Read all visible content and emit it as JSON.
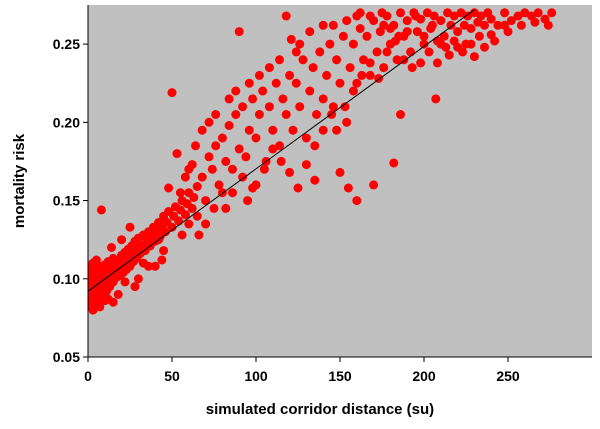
{
  "chart_data": {
    "type": "scatter",
    "title": "",
    "xlabel": "simulated corridor distance (su)",
    "ylabel": "mortality risk",
    "xlim": [
      0,
      300
    ],
    "ylim": [
      0.05,
      0.275
    ],
    "x_ticks": [
      0,
      50,
      100,
      150,
      200,
      250
    ],
    "x_tick_labels": [
      "0",
      "50",
      "100",
      "150",
      "200",
      "250"
    ],
    "y_ticks": [
      0.05,
      0.1,
      0.15,
      0.2,
      0.25
    ],
    "y_tick_labels": [
      "0.05",
      "0.10",
      "0.15",
      "0.20",
      "0.25"
    ],
    "grid": false,
    "legend": "none",
    "colors": {
      "plot_background": "#c0c0c0",
      "points": "#ff0000",
      "trendline": "#000000"
    },
    "trendline": {
      "x": [
        0,
        230
      ],
      "y": [
        0.092,
        0.272
      ]
    },
    "series": [
      {
        "points": [
          [
            1,
            0.083
          ],
          [
            1,
            0.09
          ],
          [
            1,
            0.097
          ],
          [
            1,
            0.104
          ],
          [
            2,
            0.086
          ],
          [
            2,
            0.093
          ],
          [
            2,
            0.1
          ],
          [
            2,
            0.108
          ],
          [
            3,
            0.088
          ],
          [
            3,
            0.095
          ],
          [
            3,
            0.102
          ],
          [
            3,
            0.11
          ],
          [
            4,
            0.091
          ],
          [
            4,
            0.098
          ],
          [
            4,
            0.105
          ],
          [
            5,
            0.089
          ],
          [
            5,
            0.096
          ],
          [
            5,
            0.103
          ],
          [
            5,
            0.112
          ],
          [
            6,
            0.092
          ],
          [
            6,
            0.099
          ],
          [
            6,
            0.106
          ],
          [
            7,
            0.087
          ],
          [
            7,
            0.095
          ],
          [
            7,
            0.101
          ],
          [
            7,
            0.108
          ],
          [
            8,
            0.093
          ],
          [
            8,
            0.1
          ],
          [
            8,
            0.104
          ],
          [
            9,
            0.09
          ],
          [
            9,
            0.098
          ],
          [
            9,
            0.106
          ],
          [
            10,
            0.095
          ],
          [
            10,
            0.102
          ],
          [
            10,
            0.109
          ],
          [
            11,
            0.092
          ],
          [
            11,
            0.1
          ],
          [
            12,
            0.097
          ],
          [
            12,
            0.104
          ],
          [
            12,
            0.111
          ],
          [
            13,
            0.095
          ],
          [
            13,
            0.103
          ],
          [
            14,
            0.1
          ],
          [
            14,
            0.108
          ],
          [
            15,
            0.098
          ],
          [
            15,
            0.106
          ],
          [
            15,
            0.113
          ],
          [
            16,
            0.103
          ],
          [
            16,
            0.11
          ],
          [
            17,
            0.101
          ],
          [
            17,
            0.108
          ],
          [
            18,
            0.105
          ],
          [
            18,
            0.112
          ],
          [
            19,
            0.102
          ],
          [
            19,
            0.11
          ],
          [
            20,
            0.107
          ],
          [
            20,
            0.115
          ],
          [
            21,
            0.104
          ],
          [
            22,
            0.11
          ],
          [
            22,
            0.117
          ],
          [
            23,
            0.106
          ],
          [
            24,
            0.112
          ],
          [
            24,
            0.119
          ],
          [
            25,
            0.108
          ],
          [
            26,
            0.115
          ],
          [
            26,
            0.121
          ],
          [
            27,
            0.111
          ],
          [
            28,
            0.117
          ],
          [
            28,
            0.124
          ],
          [
            29,
            0.113
          ],
          [
            30,
            0.119
          ],
          [
            30,
            0.126
          ],
          [
            31,
            0.116
          ],
          [
            32,
            0.121
          ],
          [
            33,
            0.128
          ],
          [
            34,
            0.118
          ],
          [
            35,
            0.124
          ],
          [
            36,
            0.13
          ],
          [
            37,
            0.121
          ],
          [
            38,
            0.127
          ],
          [
            39,
            0.133
          ],
          [
            40,
            0.124
          ],
          [
            41,
            0.13
          ],
          [
            42,
            0.136
          ],
          [
            43,
            0.127
          ],
          [
            44,
            0.133
          ],
          [
            45,
            0.14
          ],
          [
            46,
            0.13
          ],
          [
            47,
            0.136
          ],
          [
            48,
            0.143
          ],
          [
            50,
            0.133
          ],
          [
            51,
            0.14
          ],
          [
            52,
            0.146
          ],
          [
            54,
            0.137
          ],
          [
            55,
            0.144
          ],
          [
            56,
            0.15
          ],
          [
            58,
            0.141
          ],
          [
            59,
            0.148
          ],
          [
            60,
            0.155
          ],
          [
            62,
            0.145
          ],
          [
            63,
            0.152
          ],
          [
            65,
            0.159
          ],
          [
            8,
            0.144
          ],
          [
            7,
            0.082
          ],
          [
            12,
            0.087
          ],
          [
            20,
            0.125
          ],
          [
            25,
            0.133
          ],
          [
            33,
            0.11
          ],
          [
            40,
            0.108
          ],
          [
            45,
            0.118
          ],
          [
            48,
            0.158
          ],
          [
            50,
            0.219
          ],
          [
            53,
            0.18
          ],
          [
            58,
            0.165
          ],
          [
            62,
            0.173
          ],
          [
            66,
            0.128
          ],
          [
            68,
            0.165
          ],
          [
            70,
            0.15
          ],
          [
            72,
            0.178
          ],
          [
            74,
            0.17
          ],
          [
            76,
            0.185
          ],
          [
            78,
            0.16
          ],
          [
            80,
            0.19
          ],
          [
            82,
            0.175
          ],
          [
            84,
            0.198
          ],
          [
            86,
            0.17
          ],
          [
            88,
            0.205
          ],
          [
            90,
            0.183
          ],
          [
            92,
            0.21
          ],
          [
            94,
            0.178
          ],
          [
            96,
            0.195
          ],
          [
            98,
            0.215
          ],
          [
            100,
            0.19
          ],
          [
            102,
            0.205
          ],
          [
            104,
            0.22
          ],
          [
            106,
            0.175
          ],
          [
            108,
            0.21
          ],
          [
            110,
            0.195
          ],
          [
            112,
            0.225
          ],
          [
            114,
            0.185
          ],
          [
            116,
            0.215
          ],
          [
            118,
            0.205
          ],
          [
            120,
            0.23
          ],
          [
            122,
            0.195
          ],
          [
            124,
            0.225
          ],
          [
            126,
            0.21
          ],
          [
            128,
            0.24
          ],
          [
            130,
            0.19
          ],
          [
            132,
            0.22
          ],
          [
            134,
            0.235
          ],
          [
            136,
            0.205
          ],
          [
            138,
            0.245
          ],
          [
            140,
            0.215
          ],
          [
            142,
            0.23
          ],
          [
            144,
            0.25
          ],
          [
            146,
            0.21
          ],
          [
            148,
            0.24
          ],
          [
            150,
            0.225
          ],
          [
            152,
            0.255
          ],
          [
            154,
            0.2
          ],
          [
            156,
            0.235
          ],
          [
            158,
            0.25
          ],
          [
            160,
            0.225
          ],
          [
            162,
            0.26
          ],
          [
            164,
            0.24
          ],
          [
            166,
            0.255
          ],
          [
            168,
            0.23
          ],
          [
            170,
            0.265
          ],
          [
            172,
            0.245
          ],
          [
            174,
            0.258
          ],
          [
            176,
            0.235
          ],
          [
            178,
            0.268
          ],
          [
            180,
            0.25
          ],
          [
            182,
            0.262
          ],
          [
            184,
            0.24
          ],
          [
            186,
            0.27
          ],
          [
            188,
            0.255
          ],
          [
            190,
            0.265
          ],
          [
            192,
            0.245
          ],
          [
            194,
            0.27
          ],
          [
            196,
            0.258
          ],
          [
            198,
            0.266
          ],
          [
            200,
            0.25
          ],
          [
            202,
            0.27
          ],
          [
            204,
            0.26
          ],
          [
            206,
            0.268
          ],
          [
            208,
            0.252
          ],
          [
            210,
            0.265
          ],
          [
            212,
            0.255
          ],
          [
            214,
            0.27
          ],
          [
            216,
            0.262
          ],
          [
            218,
            0.268
          ],
          [
            220,
            0.258
          ],
          [
            222,
            0.27
          ],
          [
            224,
            0.262
          ],
          [
            226,
            0.268
          ],
          [
            228,
            0.26
          ],
          [
            230,
            0.27
          ],
          [
            232,
            0.264
          ],
          [
            234,
            0.268
          ],
          [
            236,
            0.262
          ],
          [
            238,
            0.27
          ],
          [
            240,
            0.266
          ],
          [
            244,
            0.262
          ],
          [
            248,
            0.27
          ],
          [
            252,
            0.265
          ],
          [
            256,
            0.268
          ],
          [
            260,
            0.27
          ],
          [
            264,
            0.268
          ],
          [
            268,
            0.27
          ],
          [
            272,
            0.266
          ],
          [
            276,
            0.27
          ],
          [
            118,
            0.268
          ],
          [
            121,
            0.253
          ],
          [
            124,
            0.245
          ],
          [
            90,
            0.258
          ],
          [
            135,
            0.163
          ],
          [
            150,
            0.168
          ],
          [
            155,
            0.158
          ],
          [
            160,
            0.15
          ],
          [
            170,
            0.16
          ],
          [
            182,
            0.174
          ],
          [
            186,
            0.205
          ],
          [
            207,
            0.215
          ],
          [
            160,
            0.268
          ],
          [
            175,
            0.27
          ],
          [
            185,
            0.255
          ],
          [
            195,
            0.268
          ],
          [
            205,
            0.262
          ],
          [
            215,
            0.243
          ],
          [
            225,
            0.25
          ],
          [
            240,
            0.256
          ],
          [
            248,
            0.262
          ],
          [
            100,
            0.16
          ],
          [
            105,
            0.17
          ],
          [
            110,
            0.183
          ],
          [
            115,
            0.175
          ],
          [
            120,
            0.168
          ],
          [
            125,
            0.158
          ],
          [
            130,
            0.173
          ],
          [
            135,
            0.185
          ],
          [
            140,
            0.195
          ],
          [
            145,
            0.205
          ],
          [
            148,
            0.195
          ],
          [
            153,
            0.21
          ],
          [
            158,
            0.22
          ],
          [
            163,
            0.23
          ],
          [
            168,
            0.238
          ],
          [
            173,
            0.228
          ],
          [
            178,
            0.245
          ],
          [
            183,
            0.252
          ],
          [
            188,
            0.24
          ],
          [
            193,
            0.235
          ],
          [
            198,
            0.238
          ],
          [
            203,
            0.245
          ],
          [
            208,
            0.238
          ],
          [
            213,
            0.248
          ],
          [
            218,
            0.252
          ],
          [
            223,
            0.245
          ],
          [
            228,
            0.25
          ],
          [
            233,
            0.255
          ],
          [
            82,
            0.145
          ],
          [
            86,
            0.155
          ],
          [
            92,
            0.165
          ],
          [
            95,
            0.15
          ],
          [
            98,
            0.158
          ],
          [
            65,
            0.14
          ],
          [
            70,
            0.135
          ],
          [
            75,
            0.145
          ],
          [
            80,
            0.155
          ],
          [
            56,
            0.128
          ],
          [
            60,
            0.135
          ],
          [
            44,
            0.112
          ],
          [
            36,
            0.108
          ],
          [
            30,
            0.1
          ],
          [
            28,
            0.095
          ],
          [
            18,
            0.09
          ],
          [
            15,
            0.085
          ],
          [
            3,
            0.08
          ],
          [
            6,
            0.083
          ],
          [
            10,
            0.086
          ],
          [
            14,
            0.12
          ],
          [
            22,
            0.098
          ],
          [
            35,
            0.12
          ],
          [
            42,
            0.125
          ],
          [
            55,
            0.155
          ],
          [
            60,
            0.17
          ],
          [
            64,
            0.185
          ],
          [
            68,
            0.195
          ],
          [
            72,
            0.2
          ],
          [
            76,
            0.205
          ],
          [
            84,
            0.215
          ],
          [
            88,
            0.22
          ],
          [
            96,
            0.225
          ],
          [
            102,
            0.23
          ],
          [
            108,
            0.235
          ],
          [
            114,
            0.24
          ],
          [
            126,
            0.25
          ],
          [
            132,
            0.258
          ],
          [
            140,
            0.262
          ],
          [
            146,
            0.262
          ],
          [
            154,
            0.265
          ],
          [
            162,
            0.27
          ],
          [
            168,
            0.268
          ],
          [
            176,
            0.262
          ],
          [
            180,
            0.26
          ],
          [
            190,
            0.258
          ],
          [
            200,
            0.255
          ],
          [
            210,
            0.25
          ],
          [
            220,
            0.248
          ],
          [
            230,
            0.242
          ],
          [
            236,
            0.248
          ],
          [
            242,
            0.252
          ],
          [
            250,
            0.258
          ],
          [
            258,
            0.262
          ],
          [
            266,
            0.264
          ],
          [
            274,
            0.262
          ]
        ]
      }
    ]
  }
}
